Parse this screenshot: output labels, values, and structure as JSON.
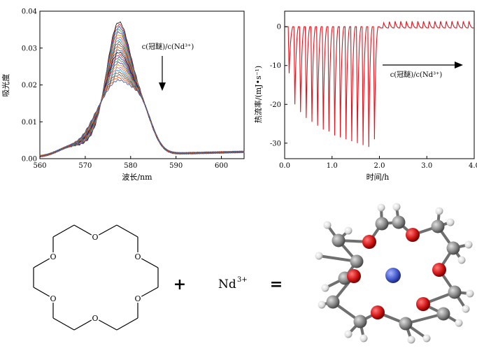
{
  "figure": {
    "uv_vis_chart": {
      "type": "line",
      "xlabel": "波长/nm",
      "ylabel": "吸光度",
      "xlim": [
        560,
        605
      ],
      "ylim": [
        0,
        0.04
      ],
      "x_ticks": [
        560,
        570,
        580,
        590,
        600
      ],
      "x_tick_labels": [
        "560",
        "570",
        "580",
        "590",
        "600"
      ],
      "y_ticks": [
        0,
        0.01,
        0.02,
        0.03,
        0.04
      ],
      "y_tick_labels": [
        "0.00",
        "0.01",
        "0.02",
        "0.03",
        "0.04"
      ],
      "annotation": "c(冠醚)/c(Nd³⁺)",
      "annotation_arrow": "down",
      "curve_count": 24,
      "peak_profile": {
        "baseline_at_560": 0.0005,
        "main_peak_x": 577.2,
        "main_peak_max": 0.0326,
        "main_peak_min": 0.0152,
        "side_peak_x": 582,
        "side_peak_max": 0.0127,
        "side_peak_min": 0.0138,
        "shoulder_x": 573,
        "shoulder_max": 0.0035,
        "shoulder_min": 0.0093
      },
      "series_colors": [
        "#000000",
        "#d62020",
        "#1a3fd0",
        "#2ea02c",
        "#7a2ab8",
        "#c8a000",
        "#e05a8a",
        "#0aa0c8",
        "#8b4513",
        "#555555",
        "#ff5500",
        "#3355aa"
      ]
    },
    "itc_chart": {
      "type": "line",
      "xlabel": "时间/h",
      "ylabel": "热流率/(mJ•s⁻¹)",
      "xlim": [
        0,
        4.0
      ],
      "ylim": [
        -34,
        4
      ],
      "x_ticks": [
        0,
        1,
        2,
        3,
        4
      ],
      "x_tick_labels": [
        "0.0",
        "1.0",
        "2.0",
        "3.0",
        "4.0"
      ],
      "y_ticks": [
        0,
        -10,
        -20,
        -30
      ],
      "y_tick_labels": [
        "0",
        "-10",
        "-20",
        "-30"
      ],
      "annotation": "c(冠醚)/c(Nd³⁺)",
      "annotation_arrow": "right",
      "line_color": "#e0141e",
      "injections_before_2h": {
        "times_h": [
          0.08,
          0.2,
          0.32,
          0.44,
          0.56,
          0.68,
          0.8,
          0.92,
          1.04,
          1.16,
          1.28,
          1.4,
          1.52,
          1.64,
          1.76,
          1.88
        ],
        "peak_values": [
          -12,
          -20,
          -22,
          -23.5,
          -24.5,
          -25.5,
          -26.5,
          -27,
          -28,
          -28.5,
          -29,
          -29.5,
          -30,
          -30.5,
          -31,
          -29
        ]
      },
      "injections_after_2h": {
        "times_h": [
          2.08,
          2.2,
          2.32,
          2.44,
          2.56,
          2.68,
          2.8,
          2.92,
          3.04,
          3.16,
          3.28,
          3.4,
          3.52,
          3.64,
          3.76,
          3.88
        ],
        "peak_values": [
          1.0,
          1.3,
          1.4,
          1.4,
          1.4,
          1.4,
          1.4,
          1.4,
          1.4,
          1.4,
          1.4,
          1.4,
          1.4,
          1.4,
          1.4,
          1.4
        ],
        "baseline": -0.3
      }
    },
    "reaction": {
      "ether_oxygen_label": "O",
      "plus_sign": "+",
      "cation_label": "Nd",
      "cation_charge": "3+",
      "equals_sign": "=",
      "colors": {
        "oxygen": "#d41a1a",
        "carbon": "#8c8c8c",
        "hydrogen": "#e8e8e8",
        "neodymium": "#4a5fd0"
      }
    }
  }
}
